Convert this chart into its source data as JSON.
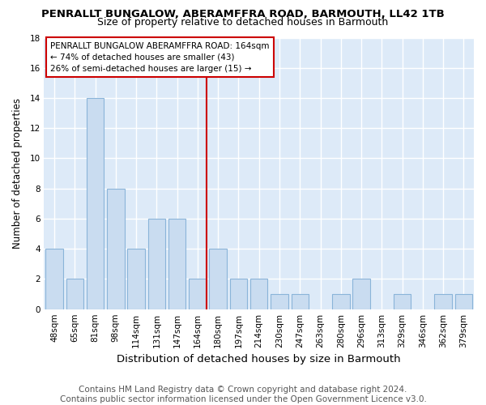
{
  "title": "PENRALLT BUNGALOW, ABERAMFFRA ROAD, BARMOUTH, LL42 1TB",
  "subtitle": "Size of property relative to detached houses in Barmouth",
  "xlabel": "Distribution of detached houses by size in Barmouth",
  "ylabel": "Number of detached properties",
  "categories": [
    "48sqm",
    "65sqm",
    "81sqm",
    "98sqm",
    "114sqm",
    "131sqm",
    "147sqm",
    "164sqm",
    "180sqm",
    "197sqm",
    "214sqm",
    "230sqm",
    "247sqm",
    "263sqm",
    "280sqm",
    "296sqm",
    "313sqm",
    "329sqm",
    "346sqm",
    "362sqm",
    "379sqm"
  ],
  "values": [
    4,
    2,
    14,
    8,
    4,
    6,
    6,
    2,
    4,
    2,
    2,
    1,
    1,
    0,
    1,
    2,
    0,
    1,
    0,
    1,
    1
  ],
  "bar_color": "#c9dcf0",
  "bar_edgecolor": "#8ab4d9",
  "reference_x_label": "164sqm",
  "reference_line_color": "#cc0000",
  "annotation_text": "PENRALLT BUNGALOW ABERAMFFRA ROAD: 164sqm\n← 74% of detached houses are smaller (43)\n26% of semi-detached houses are larger (15) →",
  "annotation_box_edgecolor": "#cc0000",
  "annotation_box_facecolor": "#ffffff",
  "ylim": [
    0,
    18
  ],
  "yticks": [
    0,
    2,
    4,
    6,
    8,
    10,
    12,
    14,
    16,
    18
  ],
  "footer_line1": "Contains HM Land Registry data © Crown copyright and database right 2024.",
  "footer_line2": "Contains public sector information licensed under the Open Government Licence v3.0.",
  "figure_background_color": "#ffffff",
  "axes_background_color": "#ddeaf8",
  "title_fontsize": 9.5,
  "subtitle_fontsize": 9,
  "xlabel_fontsize": 9.5,
  "ylabel_fontsize": 8.5,
  "tick_fontsize": 7.5,
  "annotation_fontsize": 7.5,
  "footer_fontsize": 7.5
}
